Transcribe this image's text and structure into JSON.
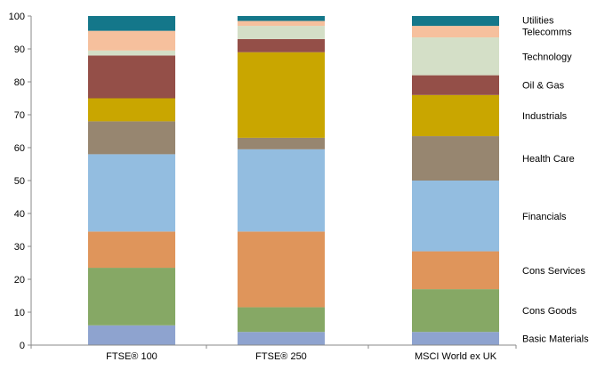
{
  "chart_data": {
    "type": "bar",
    "stacked": true,
    "categories": [
      "FTSE® 100",
      "FTSE® 250",
      "MSCI World ex UK"
    ],
    "ylim": [
      0,
      100
    ],
    "yticks": [
      0,
      10,
      20,
      30,
      40,
      50,
      60,
      70,
      80,
      90,
      100
    ],
    "grid": false,
    "legend_position": "right",
    "series": [
      {
        "name": "Basic Materials",
        "color": "#8ea3cf",
        "values": [
          6,
          4,
          4
        ]
      },
      {
        "name": "Cons Goods",
        "color": "#86a865",
        "values": [
          17.5,
          7.5,
          13
        ]
      },
      {
        "name": "Cons Services",
        "color": "#df955b",
        "values": [
          11,
          23,
          11.5
        ]
      },
      {
        "name": "Financials",
        "color": "#93bde0",
        "values": [
          23.5,
          25,
          21.5
        ]
      },
      {
        "name": "Health Care",
        "color": "#978670",
        "values": [
          10,
          3.5,
          13.5
        ]
      },
      {
        "name": "Industrials",
        "color": "#c9a600",
        "values": [
          7,
          26,
          12.5
        ]
      },
      {
        "name": "Oil & Gas",
        "color": "#944f48",
        "values": [
          13,
          4,
          6
        ]
      },
      {
        "name": "Technology",
        "color": "#d4dfc7",
        "values": [
          1.5,
          4,
          11.5
        ]
      },
      {
        "name": "Telecomms",
        "color": "#f6c09d",
        "values": [
          6,
          1.5,
          3.5
        ]
      },
      {
        "name": "Utilities",
        "color": "#14778a",
        "values": [
          4.5,
          1.5,
          3
        ]
      }
    ]
  }
}
